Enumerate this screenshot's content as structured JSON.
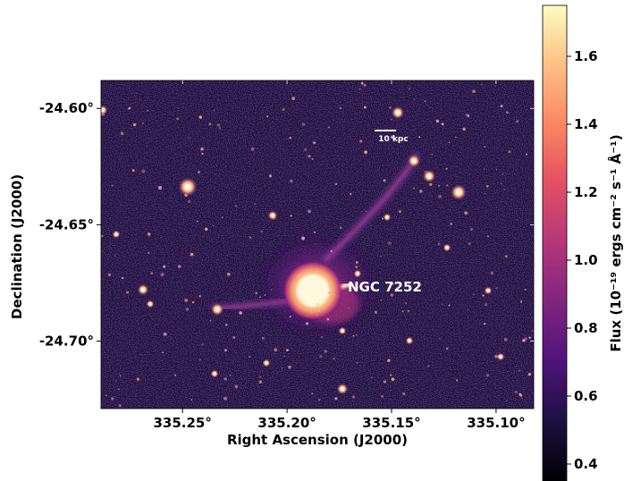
{
  "image": {
    "object_label": "NGC 7252",
    "scale_bar_label": "10 kpc",
    "xlabel": "Right Ascension (J2000)",
    "ylabel": "Declination (J2000)",
    "x_ticks": [
      "335.25°",
      "335.20°",
      "335.15°",
      "335.10°"
    ],
    "y_ticks": [
      "-24.60°",
      "-24.65°",
      "-24.70°"
    ],
    "x_tick_values": [
      335.25,
      335.2,
      335.15,
      335.1
    ],
    "y_tick_values": [
      -24.6,
      -24.65,
      -24.7
    ],
    "xlim": [
      335.289,
      335.082
    ],
    "ylim": [
      -24.729,
      -24.588
    ],
    "colormap": "magma",
    "colors": {
      "background": "#1c0f3c",
      "stars": "#fffbe0",
      "core": "#fff2c8",
      "tidal_tail": "#7a3c9c"
    }
  },
  "colorbar": {
    "label": "Flux (10⁻¹⁹ ergs cm⁻² s⁻¹ Å⁻¹)",
    "ticks": [
      "1.6",
      "1.4",
      "1.2",
      "1.0",
      "0.8",
      "0.6",
      "0.4"
    ],
    "tick_values": [
      1.6,
      1.4,
      1.2,
      1.0,
      0.8,
      0.6,
      0.4
    ],
    "range": [
      0.35,
      1.75
    ]
  }
}
